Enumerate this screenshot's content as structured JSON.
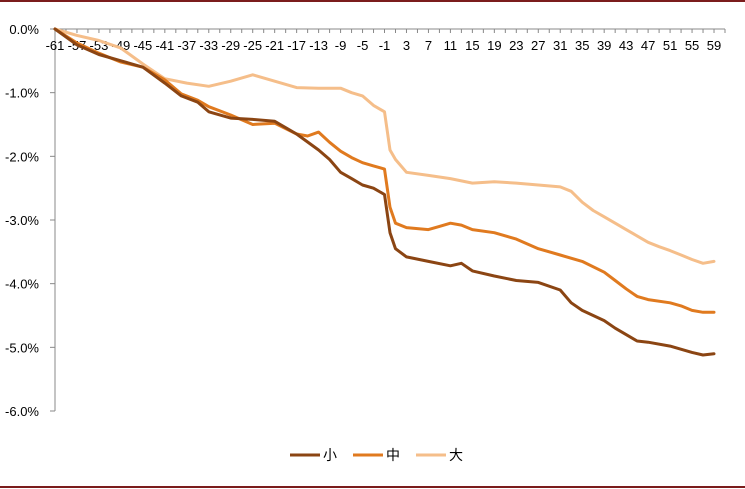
{
  "chart_data": {
    "type": "line",
    "title": "",
    "xlabel": "",
    "ylabel": "",
    "x_range": [
      -61,
      61
    ],
    "x_tick_labels": [
      "-61",
      "-57",
      "-53",
      "-49",
      "-45",
      "-41",
      "-37",
      "-33",
      "-29",
      "-25",
      "-21",
      "-17",
      "-13",
      "-9",
      "-5",
      "-1",
      "3",
      "7",
      "11",
      "15",
      "19",
      "23",
      "27",
      "31",
      "35",
      "39",
      "43",
      "47",
      "51",
      "55",
      "59"
    ],
    "ylim": [
      -6.0,
      0.0
    ],
    "y_ticks": [
      0.0,
      -1.0,
      -2.0,
      -3.0,
      -4.0,
      -5.0,
      -6.0
    ],
    "y_tick_labels": [
      "0.0%",
      "-1.0%",
      "-2.0%",
      "-3.0%",
      "-4.0%",
      "-5.0%",
      "-6.0%"
    ],
    "grid": false,
    "legend_position": "bottom-center",
    "series": [
      {
        "name": "小",
        "color": "#8B4513",
        "points": [
          [
            -61,
            0.0
          ],
          [
            -57,
            -0.25
          ],
          [
            -53,
            -0.4
          ],
          [
            -49,
            -0.5
          ],
          [
            -45,
            -0.6
          ],
          [
            -41,
            -0.85
          ],
          [
            -38,
            -1.05
          ],
          [
            -35,
            -1.15
          ],
          [
            -33,
            -1.3
          ],
          [
            -29,
            -1.4
          ],
          [
            -25,
            -1.42
          ],
          [
            -21,
            -1.45
          ],
          [
            -17,
            -1.65
          ],
          [
            -13,
            -1.9
          ],
          [
            -11,
            -2.05
          ],
          [
            -9,
            -2.25
          ],
          [
            -7,
            -2.35
          ],
          [
            -5,
            -2.45
          ],
          [
            -3,
            -2.5
          ],
          [
            -1,
            -2.6
          ],
          [
            0,
            -3.2
          ],
          [
            1,
            -3.45
          ],
          [
            3,
            -3.58
          ],
          [
            7,
            -3.65
          ],
          [
            11,
            -3.72
          ],
          [
            13,
            -3.68
          ],
          [
            15,
            -3.8
          ],
          [
            19,
            -3.88
          ],
          [
            23,
            -3.95
          ],
          [
            27,
            -3.98
          ],
          [
            31,
            -4.1
          ],
          [
            33,
            -4.3
          ],
          [
            35,
            -4.42
          ],
          [
            39,
            -4.58
          ],
          [
            41,
            -4.7
          ],
          [
            43,
            -4.8
          ],
          [
            45,
            -4.9
          ],
          [
            47,
            -4.92
          ],
          [
            51,
            -4.98
          ],
          [
            55,
            -5.08
          ],
          [
            57,
            -5.12
          ],
          [
            59,
            -5.1
          ]
        ]
      },
      {
        "name": "中",
        "color": "#E07A1F",
        "points": [
          [
            -61,
            0.0
          ],
          [
            -57,
            -0.22
          ],
          [
            -53,
            -0.38
          ],
          [
            -49,
            -0.52
          ],
          [
            -45,
            -0.6
          ],
          [
            -41,
            -0.8
          ],
          [
            -38,
            -1.02
          ],
          [
            -35,
            -1.12
          ],
          [
            -33,
            -1.22
          ],
          [
            -29,
            -1.35
          ],
          [
            -25,
            -1.5
          ],
          [
            -21,
            -1.48
          ],
          [
            -17,
            -1.65
          ],
          [
            -15,
            -1.68
          ],
          [
            -13,
            -1.62
          ],
          [
            -11,
            -1.78
          ],
          [
            -9,
            -1.92
          ],
          [
            -7,
            -2.02
          ],
          [
            -5,
            -2.1
          ],
          [
            -3,
            -2.15
          ],
          [
            -1,
            -2.2
          ],
          [
            0,
            -2.8
          ],
          [
            1,
            -3.05
          ],
          [
            3,
            -3.12
          ],
          [
            7,
            -3.15
          ],
          [
            9,
            -3.1
          ],
          [
            11,
            -3.05
          ],
          [
            13,
            -3.08
          ],
          [
            15,
            -3.15
          ],
          [
            19,
            -3.2
          ],
          [
            23,
            -3.3
          ],
          [
            27,
            -3.45
          ],
          [
            31,
            -3.55
          ],
          [
            35,
            -3.65
          ],
          [
            39,
            -3.82
          ],
          [
            41,
            -3.95
          ],
          [
            43,
            -4.08
          ],
          [
            45,
            -4.2
          ],
          [
            47,
            -4.25
          ],
          [
            51,
            -4.3
          ],
          [
            53,
            -4.35
          ],
          [
            55,
            -4.42
          ],
          [
            57,
            -4.45
          ],
          [
            59,
            -4.45
          ]
        ]
      },
      {
        "name": "大",
        "color": "#F5BE8A",
        "points": [
          [
            -61,
            0.0
          ],
          [
            -57,
            -0.1
          ],
          [
            -53,
            -0.18
          ],
          [
            -49,
            -0.3
          ],
          [
            -45,
            -0.55
          ],
          [
            -41,
            -0.78
          ],
          [
            -37,
            -0.85
          ],
          [
            -33,
            -0.9
          ],
          [
            -29,
            -0.82
          ],
          [
            -25,
            -0.72
          ],
          [
            -21,
            -0.82
          ],
          [
            -17,
            -0.92
          ],
          [
            -13,
            -0.93
          ],
          [
            -9,
            -0.93
          ],
          [
            -7,
            -1.0
          ],
          [
            -5,
            -1.05
          ],
          [
            -3,
            -1.2
          ],
          [
            -1,
            -1.3
          ],
          [
            0,
            -1.9
          ],
          [
            1,
            -2.05
          ],
          [
            3,
            -2.25
          ],
          [
            7,
            -2.3
          ],
          [
            11,
            -2.35
          ],
          [
            15,
            -2.42
          ],
          [
            19,
            -2.4
          ],
          [
            23,
            -2.42
          ],
          [
            27,
            -2.45
          ],
          [
            31,
            -2.48
          ],
          [
            33,
            -2.55
          ],
          [
            35,
            -2.72
          ],
          [
            37,
            -2.85
          ],
          [
            39,
            -2.95
          ],
          [
            41,
            -3.05
          ],
          [
            43,
            -3.15
          ],
          [
            45,
            -3.25
          ],
          [
            47,
            -3.35
          ],
          [
            49,
            -3.42
          ],
          [
            51,
            -3.48
          ],
          [
            53,
            -3.55
          ],
          [
            55,
            -3.62
          ],
          [
            57,
            -3.68
          ],
          [
            59,
            -3.65
          ]
        ]
      }
    ]
  }
}
